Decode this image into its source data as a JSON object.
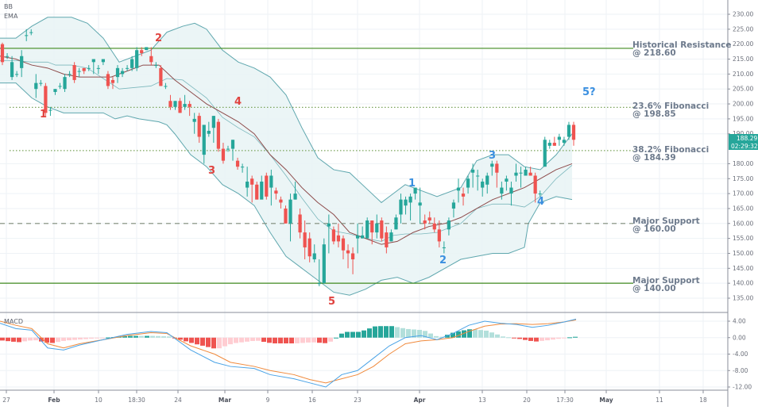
{
  "indicators": {
    "main_labels": [
      "BB",
      "EMA"
    ],
    "macd_label": "MACD"
  },
  "price_axis": {
    "ticks": [
      "230.00",
      "225.00",
      "220.00",
      "215.00",
      "210.00",
      "205.00",
      "200.00",
      "195.00",
      "190.00",
      "180.00",
      "175.00",
      "170.00",
      "165.00",
      "160.00",
      "155.00",
      "150.00",
      "145.00",
      "140.00",
      "135.00"
    ],
    "current_price": "188.29",
    "countdown": "02:29:32"
  },
  "macd_axis": {
    "ticks": [
      "4.00",
      "0.00",
      "-4.00",
      "-8.00",
      "-12.00"
    ]
  },
  "time_axis": {
    "ticks": [
      {
        "label": "27",
        "bold": false
      },
      {
        "label": "Feb",
        "bold": true
      },
      {
        "label": "10",
        "bold": false
      },
      {
        "label": "18:30",
        "bold": false
      },
      {
        "label": "24",
        "bold": false
      },
      {
        "label": "Mar",
        "bold": true
      },
      {
        "label": "9",
        "bold": false
      },
      {
        "label": "16",
        "bold": false
      },
      {
        "label": "23",
        "bold": false
      },
      {
        "label": "Apr",
        "bold": true
      },
      {
        "label": "13",
        "bold": false
      },
      {
        "label": "20",
        "bold": false
      },
      {
        "label": "17:30",
        "bold": false
      },
      {
        "label": "May",
        "bold": true
      },
      {
        "label": "11",
        "bold": false
      },
      {
        "label": "18",
        "bold": false
      }
    ]
  },
  "annotations": {
    "historical_resistance": {
      "line1": "Historical Resistance",
      "line2": "@ 218.60"
    },
    "fib_236": {
      "line1": "23.6% Fibonacci",
      "line2": "@ 198.85"
    },
    "fib_382": {
      "line1": "38.2% Fibonacci",
      "line2": "@ 184.39"
    },
    "support_160": {
      "line1": "Major Support",
      "line2": "@ 160.00"
    },
    "support_140": {
      "line1": "Major Support",
      "line2": "@ 140.00"
    }
  },
  "waves": {
    "red": [
      "1",
      "2",
      "3",
      "4",
      "5"
    ],
    "blue": [
      "1",
      "2",
      "3",
      "4",
      "5?"
    ]
  },
  "colors": {
    "up": "#26a69a",
    "down": "#ef5350",
    "band": "#5fa7ae",
    "band_fill": "#e9f4f5",
    "ema": "#8d4b4b",
    "resistance": "#3f8a1f",
    "fib": "#7aa35a",
    "support_dash": "#7d8a78",
    "macd_line": "#4aa3e6",
    "signal_line": "#f08a3c",
    "wave_red": "#e0433f",
    "wave_blue": "#3a8fe0"
  },
  "chart_data": {
    "type": "candlestick",
    "title": "",
    "indicators": [
      "Bollinger Bands",
      "EMA",
      "MACD"
    ],
    "y_range": [
      133,
      233
    ],
    "levels": [
      {
        "name": "Historical Resistance",
        "value": 218.6,
        "style": "solid"
      },
      {
        "name": "23.6% Fibonacci",
        "value": 198.85,
        "style": "dotted"
      },
      {
        "name": "38.2% Fibonacci",
        "value": 184.39,
        "style": "dotted"
      },
      {
        "name": "Major Support",
        "value": 160.0,
        "style": "dashed"
      },
      {
        "name": "Major Support",
        "value": 140.0,
        "style": "solid"
      }
    ],
    "last_price": 188.29,
    "candles_ohlc": [
      [
        220,
        220.5,
        213,
        214
      ],
      [
        216,
        217,
        215,
        216
      ],
      [
        209,
        216,
        208,
        214
      ],
      [
        210,
        211,
        209,
        210
      ],
      [
        212,
        218,
        209,
        216
      ],
      [
        223,
        225,
        221,
        223
      ],
      [
        224,
        225,
        223,
        224
      ],
      [
        205,
        210,
        202,
        207
      ],
      [
        207,
        208,
        206,
        207
      ],
      [
        206,
        207,
        196,
        197
      ],
      [
        198,
        199,
        196,
        198
      ],
      [
        204,
        205,
        203,
        205
      ],
      [
        206,
        207,
        205,
        206
      ],
      [
        205,
        210,
        204,
        209
      ],
      [
        210,
        211,
        209,
        210
      ],
      [
        213,
        214,
        207,
        208
      ],
      [
        211,
        212,
        209,
        211
      ],
      [
        212,
        212,
        210,
        211
      ],
      [
        212,
        213,
        211,
        212
      ],
      [
        214,
        215,
        210,
        215
      ],
      [
        212,
        213,
        210,
        212
      ],
      [
        214,
        215,
        213,
        215
      ],
      [
        210,
        211,
        205,
        206
      ],
      [
        208,
        209,
        205,
        207
      ],
      [
        209,
        213,
        207,
        212
      ],
      [
        210,
        212,
        209,
        211
      ],
      [
        212,
        213,
        211,
        212
      ],
      [
        212,
        216,
        211,
        215
      ],
      [
        212,
        219,
        211,
        218
      ],
      [
        218,
        219,
        216,
        217
      ],
      [
        218,
        219,
        218,
        219
      ],
      [
        216,
        219,
        213,
        214
      ],
      [
        213,
        214,
        212,
        213
      ],
      [
        212,
        213,
        206,
        206
      ],
      [
        206,
        207,
        205,
        206
      ],
      [
        201,
        203,
        198,
        199
      ],
      [
        199,
        201,
        198,
        201
      ],
      [
        201,
        202,
        197,
        197
      ],
      [
        199,
        203,
        198,
        200
      ],
      [
        200,
        201,
        196,
        199
      ],
      [
        194,
        197,
        190,
        195
      ],
      [
        196,
        197,
        187,
        189
      ],
      [
        183,
        192,
        180,
        193
      ],
      [
        190,
        194,
        189,
        191
      ],
      [
        192,
        196,
        187,
        196
      ],
      [
        194,
        195,
        184,
        185
      ],
      [
        185,
        187,
        180,
        181
      ],
      [
        185,
        186,
        184,
        185
      ],
      [
        185,
        188,
        181,
        188
      ],
      [
        181,
        182,
        178,
        179
      ],
      [
        179,
        180,
        177,
        179
      ],
      [
        172,
        179,
        169,
        174
      ],
      [
        175,
        176,
        167,
        173
      ],
      [
        173,
        174,
        168,
        168
      ],
      [
        168,
        176,
        169,
        174
      ],
      [
        176,
        177,
        168,
        169
      ],
      [
        172,
        178,
        166,
        176
      ],
      [
        171,
        172,
        168,
        170
      ],
      [
        168,
        169,
        165,
        167
      ],
      [
        165,
        166,
        160,
        160
      ],
      [
        160,
        170,
        154,
        168
      ],
      [
        168,
        174,
        168,
        170
      ],
      [
        163,
        165,
        155,
        157
      ],
      [
        157,
        161,
        148,
        152
      ],
      [
        155,
        157,
        147,
        149
      ],
      [
        148,
        153,
        147,
        150
      ],
      [
        140,
        148,
        139,
        140
      ],
      [
        140,
        155,
        140,
        153
      ],
      [
        159,
        163,
        150,
        160
      ],
      [
        158,
        159,
        153,
        154
      ],
      [
        156,
        160,
        152,
        154
      ],
      [
        155,
        156,
        148,
        151
      ],
      [
        151,
        153,
        145,
        150
      ],
      [
        150,
        152,
        143,
        148
      ],
      [
        155,
        160,
        150,
        156
      ],
      [
        155,
        159,
        155,
        156
      ],
      [
        155,
        162,
        155,
        161
      ],
      [
        161,
        161,
        153,
        157
      ],
      [
        157,
        163,
        155,
        160
      ],
      [
        161,
        162,
        154,
        155
      ],
      [
        157,
        159,
        150,
        152
      ],
      [
        154,
        158,
        154,
        157
      ],
      [
        158,
        163,
        158,
        162
      ],
      [
        163,
        170,
        160,
        168
      ],
      [
        166,
        169,
        163,
        168
      ],
      [
        167,
        170,
        161,
        169
      ],
      [
        170,
        171,
        168,
        172
      ],
      [
        166,
        172,
        160,
        167
      ],
      [
        161,
        163,
        158,
        160
      ],
      [
        162,
        164,
        160,
        161
      ],
      [
        160,
        162,
        157,
        158
      ],
      [
        158,
        161,
        152,
        154
      ],
      [
        152,
        154,
        150,
        152
      ],
      [
        158,
        162,
        156,
        161
      ],
      [
        165,
        168,
        162,
        167
      ],
      [
        171,
        175,
        167,
        172
      ],
      [
        170,
        172,
        166,
        169
      ],
      [
        172,
        176,
        170,
        175
      ],
      [
        177,
        180,
        172,
        178
      ],
      [
        176,
        178,
        171,
        176
      ],
      [
        172,
        175,
        169,
        174
      ],
      [
        173,
        177,
        170,
        176
      ],
      [
        179,
        181,
        176,
        180
      ],
      [
        180,
        181,
        172,
        177
      ],
      [
        170,
        174,
        168,
        172
      ],
      [
        174,
        176,
        171,
        175
      ],
      [
        170,
        174,
        166,
        172
      ],
      [
        176,
        180,
        174,
        177
      ],
      [
        177,
        179,
        172,
        177
      ],
      [
        176,
        179,
        176,
        178
      ],
      [
        177,
        179,
        176,
        176
      ],
      [
        176,
        177,
        167,
        170
      ],
      [
        170,
        171,
        169,
        170
      ],
      [
        179,
        189,
        179,
        188
      ],
      [
        186,
        188,
        185,
        187
      ],
      [
        187,
        189,
        186,
        186
      ],
      [
        188,
        190,
        186,
        189
      ],
      [
        187,
        189,
        186,
        188
      ],
      [
        189,
        194,
        188,
        193
      ],
      [
        193,
        194,
        186,
        188
      ]
    ],
    "bollinger_upper_approx": [
      [
        0,
        222
      ],
      [
        20,
        222
      ],
      [
        40,
        226
      ],
      [
        60,
        229
      ],
      [
        70,
        229
      ],
      [
        90,
        229
      ],
      [
        110,
        227
      ],
      [
        130,
        222
      ],
      [
        150,
        214
      ],
      [
        170,
        216
      ],
      [
        190,
        218
      ],
      [
        210,
        224
      ],
      [
        230,
        226
      ],
      [
        245,
        227
      ],
      [
        260,
        225
      ],
      [
        280,
        218
      ],
      [
        300,
        214
      ],
      [
        320,
        212
      ],
      [
        340,
        209
      ],
      [
        360,
        203
      ],
      [
        380,
        192
      ],
      [
        400,
        182
      ],
      [
        420,
        178
      ],
      [
        440,
        177
      ],
      [
        460,
        172
      ],
      [
        480,
        167
      ],
      [
        495,
        170
      ],
      [
        510,
        173
      ],
      [
        530,
        171
      ],
      [
        550,
        169
      ],
      [
        580,
        172
      ],
      [
        600,
        181
      ],
      [
        620,
        183
      ],
      [
        640,
        183
      ],
      [
        660,
        179
      ],
      [
        680,
        178
      ],
      [
        700,
        183
      ],
      [
        720,
        190
      ]
    ],
    "bollinger_lower_approx": [
      [
        0,
        207
      ],
      [
        20,
        207
      ],
      [
        40,
        202
      ],
      [
        60,
        199
      ],
      [
        80,
        197
      ],
      [
        100,
        197
      ],
      [
        130,
        197
      ],
      [
        145,
        195
      ],
      [
        160,
        196
      ],
      [
        175,
        195
      ],
      [
        200,
        194
      ],
      [
        210,
        193
      ],
      [
        220,
        190
      ],
      [
        240,
        183
      ],
      [
        260,
        179
      ],
      [
        280,
        173
      ],
      [
        300,
        170
      ],
      [
        320,
        166
      ],
      [
        340,
        157
      ],
      [
        360,
        149
      ],
      [
        380,
        145
      ],
      [
        400,
        141
      ],
      [
        420,
        137
      ],
      [
        440,
        136
      ],
      [
        460,
        138
      ],
      [
        480,
        141
      ],
      [
        500,
        142
      ],
      [
        520,
        140
      ],
      [
        540,
        142
      ],
      [
        560,
        145
      ],
      [
        580,
        148
      ],
      [
        600,
        149
      ],
      [
        620,
        150
      ],
      [
        640,
        150
      ],
      [
        660,
        152
      ],
      [
        665,
        160
      ],
      [
        680,
        167
      ],
      [
        700,
        169
      ],
      [
        720,
        168
      ]
    ],
    "ema_approx": [
      [
        0,
        216
      ],
      [
        20,
        215
      ],
      [
        40,
        213
      ],
      [
        60,
        212
      ],
      [
        80,
        210
      ],
      [
        100,
        209
      ],
      [
        120,
        209
      ],
      [
        140,
        209
      ],
      [
        160,
        211
      ],
      [
        180,
        213
      ],
      [
        200,
        213
      ],
      [
        220,
        208
      ],
      [
        240,
        204
      ],
      [
        260,
        200
      ],
      [
        280,
        197
      ],
      [
        300,
        194
      ],
      [
        320,
        190
      ],
      [
        340,
        183
      ],
      [
        360,
        178
      ],
      [
        380,
        172
      ],
      [
        400,
        167
      ],
      [
        420,
        163
      ],
      [
        440,
        157
      ],
      [
        460,
        155
      ],
      [
        480,
        153
      ],
      [
        500,
        154
      ],
      [
        520,
        157
      ],
      [
        540,
        159
      ],
      [
        560,
        160
      ],
      [
        580,
        162
      ],
      [
        600,
        165
      ],
      [
        620,
        168
      ],
      [
        640,
        170
      ],
      [
        660,
        172
      ],
      [
        680,
        175
      ],
      [
        700,
        178
      ],
      [
        720,
        180
      ]
    ],
    "macd": {
      "ylim": [
        -13,
        5
      ],
      "macd_line_approx": [
        [
          0,
          3.5
        ],
        [
          20,
          2.2
        ],
        [
          40,
          1.8
        ],
        [
          60,
          -2.5
        ],
        [
          80,
          -3.0
        ],
        [
          100,
          -1.8
        ],
        [
          130,
          -0.5
        ],
        [
          160,
          0.8
        ],
        [
          190,
          1.5
        ],
        [
          210,
          1.2
        ],
        [
          240,
          -3
        ],
        [
          270,
          -6
        ],
        [
          290,
          -7
        ],
        [
          320,
          -7.5
        ],
        [
          340,
          -9
        ],
        [
          370,
          -10
        ],
        [
          390,
          -11
        ],
        [
          410,
          -12
        ],
        [
          430,
          -9
        ],
        [
          450,
          -8
        ],
        [
          470,
          -5
        ],
        [
          490,
          -2
        ],
        [
          510,
          0
        ],
        [
          530,
          0.5
        ],
        [
          550,
          -0.5
        ],
        [
          570,
          1
        ],
        [
          590,
          3
        ],
        [
          610,
          4
        ],
        [
          630,
          3.5
        ],
        [
          650,
          3.2
        ],
        [
          670,
          2.5
        ],
        [
          690,
          3
        ],
        [
          710,
          3.8
        ],
        [
          725,
          4.5
        ]
      ],
      "signal_line_approx": [
        [
          0,
          4
        ],
        [
          20,
          3
        ],
        [
          40,
          2.2
        ],
        [
          60,
          -1.5
        ],
        [
          80,
          -2.5
        ],
        [
          100,
          -1.5
        ],
        [
          130,
          -0.5
        ],
        [
          160,
          0.5
        ],
        [
          190,
          1.2
        ],
        [
          210,
          1.0
        ],
        [
          240,
          -2
        ],
        [
          270,
          -4
        ],
        [
          290,
          -6
        ],
        [
          320,
          -7
        ],
        [
          340,
          -8
        ],
        [
          370,
          -9
        ],
        [
          390,
          -10.2
        ],
        [
          410,
          -11
        ],
        [
          430,
          -10
        ],
        [
          450,
          -9
        ],
        [
          470,
          -7
        ],
        [
          490,
          -4
        ],
        [
          510,
          -1.5
        ],
        [
          530,
          -0.8
        ],
        [
          550,
          -0.5
        ],
        [
          570,
          0
        ],
        [
          590,
          1.5
        ],
        [
          610,
          2.8
        ],
        [
          630,
          3.3
        ],
        [
          650,
          3.4
        ],
        [
          670,
          3.2
        ],
        [
          690,
          3.4
        ],
        [
          710,
          3.8
        ],
        [
          725,
          4.3
        ]
      ]
    }
  }
}
